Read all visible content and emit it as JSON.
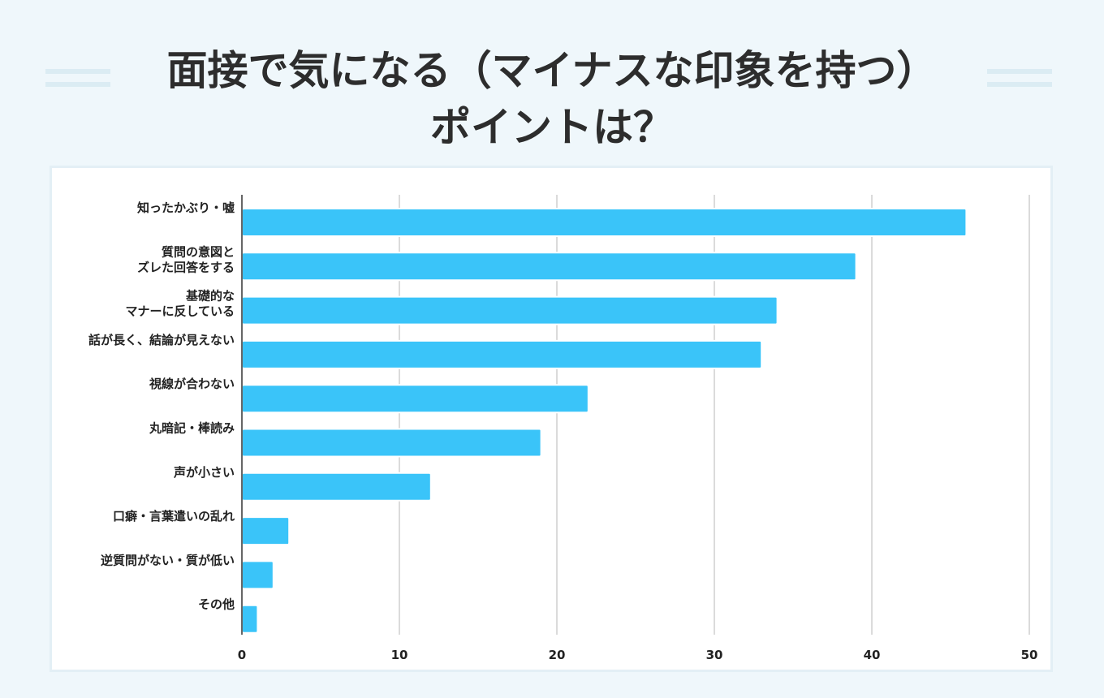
{
  "header": {
    "title_line1": "面接で気になる（マイナスな印象を持つ）",
    "title_line2": "ポイントは？"
  },
  "colors": {
    "background": "#eff7fb",
    "bar": "#3ac4f9",
    "grid": "#cfcfcf",
    "axis": "#333333",
    "text": "#222222"
  },
  "chart_data": {
    "type": "bar",
    "orientation": "horizontal",
    "title": "面接で気になる（マイナスな印象を持つ）ポイントは？",
    "categories": [
      [
        "知ったかぶり・嘘"
      ],
      [
        "質問の意図と",
        "ズレた回答をする"
      ],
      [
        "基礎的な",
        "マナーに反している"
      ],
      [
        "話が長く、結論が見えない"
      ],
      [
        "視線が合わない"
      ],
      [
        "丸暗記・棒読み"
      ],
      [
        "声が小さい"
      ],
      [
        "口癖・言葉遣いの乱れ"
      ],
      [
        "逆質問がない・質が低い"
      ],
      [
        "その他"
      ]
    ],
    "values": [
      46,
      39,
      34,
      33,
      22,
      19,
      12,
      3,
      2,
      1
    ],
    "xlim": [
      0,
      50
    ],
    "xticks": [
      "0",
      "10",
      "20",
      "30",
      "40",
      "50"
    ],
    "grid": true,
    "xlabel": "",
    "ylabel": ""
  }
}
